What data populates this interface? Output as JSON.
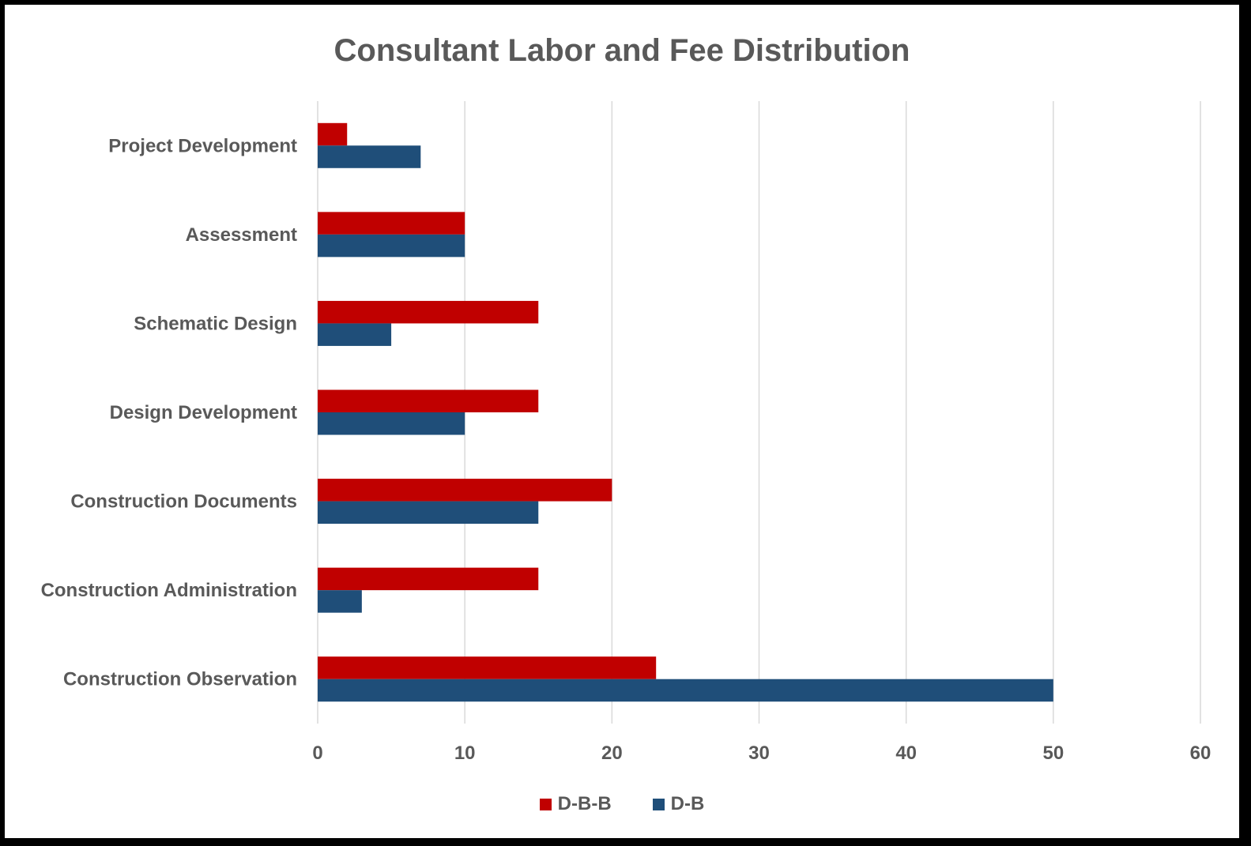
{
  "chart_data": {
    "type": "bar",
    "orientation": "horizontal",
    "title": "Consultant Labor and Fee Distribution",
    "categories": [
      "Project Development",
      "Assessment",
      "Schematic Design",
      "Design Development",
      "Construction Documents",
      "Construction Administration",
      "Construction Observation"
    ],
    "series": [
      {
        "name": "D-B-B",
        "color": "#C00000",
        "values": [
          2,
          10,
          15,
          15,
          20,
          15,
          23
        ]
      },
      {
        "name": "D-B",
        "color": "#1F4E79",
        "values": [
          7,
          10,
          5,
          10,
          15,
          3,
          50
        ]
      }
    ],
    "xlim": [
      0,
      60
    ],
    "xticks": [
      "0",
      "10",
      "20",
      "30",
      "40",
      "50",
      "60"
    ],
    "grid": true,
    "legend_position": "bottom"
  }
}
